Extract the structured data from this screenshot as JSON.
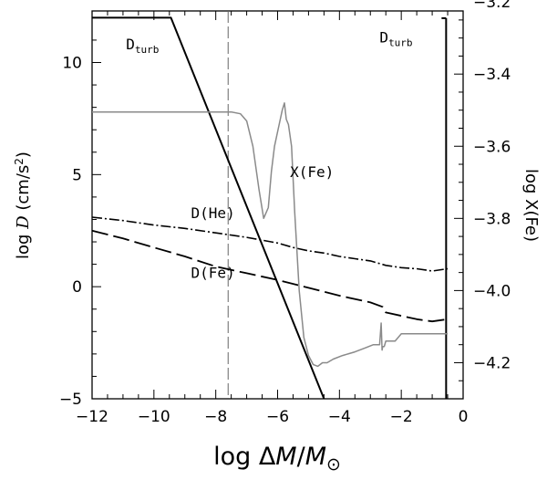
{
  "chart_data": {
    "type": "line",
    "xlabel": "log ΔM/M☉",
    "ylabel": "log D (cm/s²)",
    "y2label": "log X(Fe)",
    "xlim": [
      -12,
      0
    ],
    "ylim": [
      -5,
      12.3
    ],
    "y2lim": [
      -4.3,
      -3.225
    ],
    "xticks": [
      -12,
      -10,
      -8,
      -6,
      -4,
      -2,
      0
    ],
    "xtick_labels": [
      "−12",
      "−10",
      "−8",
      "−6",
      "−4",
      "−2",
      "0"
    ],
    "yticks": [
      -5,
      0,
      5,
      10
    ],
    "ytick_labels": [
      "−5",
      "0",
      "5",
      "10"
    ],
    "y2ticks": [
      -4.2,
      -4.0,
      -3.8,
      -3.6,
      -3.4,
      -3.2
    ],
    "y2tick_labels": [
      "−4.2",
      "−4.0",
      "−3.8",
      "−3.6",
      "−3.4",
      "−3.2"
    ],
    "vline_x": -7.6,
    "series": [
      {
        "name": "D_turb",
        "axis": "left",
        "style": "solid-thick",
        "x": [
          -12,
          -9.45,
          -4.5
        ],
        "y": [
          12,
          12,
          -5
        ]
      },
      {
        "name": "D(He)",
        "axis": "left",
        "style": "dash-dot",
        "x": [
          -12,
          -11,
          -10,
          -9,
          -8,
          -7,
          -6,
          -5.5,
          -5,
          -4.5,
          -4,
          -3.5,
          -3,
          -2.5,
          -2,
          -1.5,
          -1,
          -0.5
        ],
        "y": [
          3.1,
          2.95,
          2.75,
          2.6,
          2.4,
          2.2,
          1.95,
          1.75,
          1.6,
          1.5,
          1.35,
          1.25,
          1.15,
          0.95,
          0.85,
          0.8,
          0.7,
          0.8
        ]
      },
      {
        "name": "D(Fe)",
        "axis": "left",
        "style": "long-dash",
        "x": [
          -12,
          -11,
          -10,
          -9,
          -8,
          -7,
          -6,
          -5,
          -4,
          -3,
          -2.6,
          -2.5,
          -2,
          -1.5,
          -1,
          -0.5
        ],
        "y": [
          2.5,
          2.15,
          1.75,
          1.35,
          0.9,
          0.6,
          0.3,
          -0.05,
          -0.4,
          -0.7,
          -0.9,
          -1.15,
          -1.3,
          -1.45,
          -1.55,
          -1.45
        ]
      },
      {
        "name": "X(Fe)",
        "axis": "right",
        "style": "solid-gray",
        "x": [
          -12,
          -11,
          -10,
          -9,
          -8,
          -7.5,
          -7.2,
          -7.0,
          -6.8,
          -6.6,
          -6.45,
          -6.3,
          -6.2,
          -6.1,
          -6.0,
          -5.85,
          -5.78,
          -5.72,
          -5.65,
          -5.55,
          -5.45,
          -5.3,
          -5.15,
          -5.0,
          -4.85,
          -4.7,
          -4.55,
          -4.4,
          -4.2,
          -3.9,
          -3.5,
          -3.2,
          -2.9,
          -2.7,
          -2.65,
          -2.62,
          -2.6,
          -2.55,
          -2.5,
          -2.2,
          -2.0,
          -1.5,
          -1.0,
          -0.5
        ],
        "y": [
          -3.505,
          -3.505,
          -3.505,
          -3.505,
          -3.505,
          -3.505,
          -3.51,
          -3.53,
          -3.6,
          -3.72,
          -3.8,
          -3.77,
          -3.67,
          -3.6,
          -3.56,
          -3.5,
          -3.48,
          -3.525,
          -3.54,
          -3.6,
          -3.78,
          -4.0,
          -4.13,
          -4.18,
          -4.205,
          -4.21,
          -4.2,
          -4.2,
          -4.19,
          -4.18,
          -4.17,
          -4.16,
          -4.15,
          -4.15,
          -4.09,
          -4.165,
          -4.155,
          -4.155,
          -4.14,
          -4.14,
          -4.12,
          -4.12,
          -4.12,
          -4.12
        ]
      }
    ],
    "annotations": [
      {
        "text": "D",
        "sub": "turb",
        "x": -10.9,
        "y": 10.6,
        "axis": "left"
      },
      {
        "text": "D",
        "sub": "turb",
        "x": -2.7,
        "y": 10.9,
        "axis": "left"
      },
      {
        "text": "X(Fe)",
        "x": -5.6,
        "y": 4.9,
        "axis": "left"
      },
      {
        "text": "D(He)",
        "x": -8.8,
        "y": 3.05,
        "axis": "left"
      },
      {
        "text": "D(Fe)",
        "x": -8.8,
        "y": 0.4,
        "axis": "left"
      }
    ],
    "right_axis_bar": {
      "x": -0.55,
      "y_top": -3.245,
      "y_bottom": -4.3
    }
  }
}
